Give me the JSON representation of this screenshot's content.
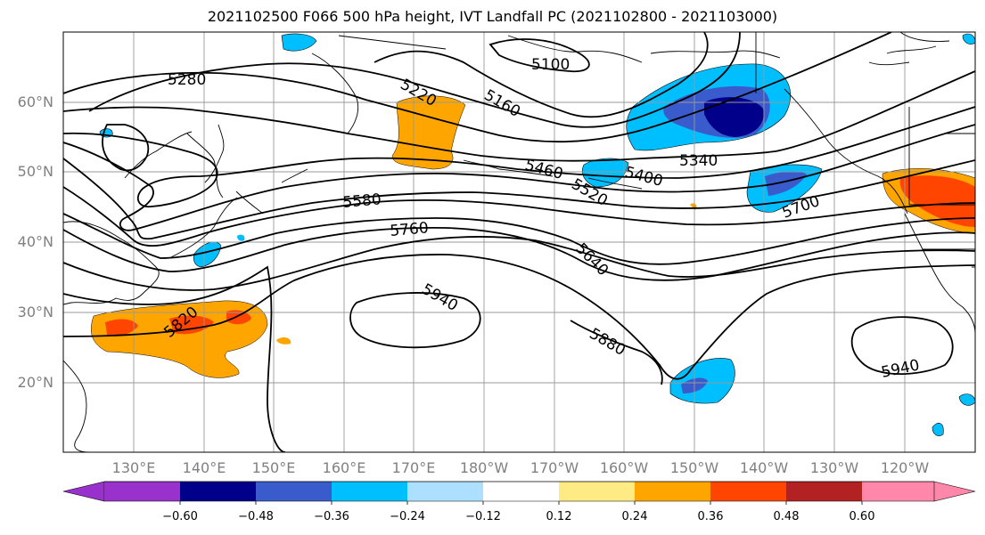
{
  "title": "2021102500 F066 500 hPa height, IVT Landfall PC (2021102800 - 2021103000)",
  "lat_labels": [
    "60°N",
    "50°N",
    "40°N",
    "30°N",
    "20°N"
  ],
  "lon_labels": [
    "130°E",
    "140°E",
    "150°E",
    "160°E",
    "170°E",
    "180°W",
    "170°W",
    "160°W",
    "150°W",
    "140°W",
    "130°W",
    "120°W"
  ],
  "contour_labels": [
    "5280",
    "5220",
    "5160",
    "5100",
    "5340",
    "5460",
    "5400",
    "5520",
    "5580",
    "5760",
    "5640",
    "5700",
    "5940",
    "5820",
    "5880",
    "5940"
  ],
  "colorbar": {
    "ticks": [
      "−0.60",
      "−0.48",
      "−0.36",
      "−0.24",
      "−0.12",
      "0.12",
      "0.24",
      "0.36",
      "0.48",
      "0.60"
    ],
    "colors": [
      "#9932CC",
      "#00008B",
      "#3A5BCB",
      "#00BFFF",
      "#ADDFFF",
      "#FFFFFF",
      "#FFEB84",
      "#FFA500",
      "#FF4500",
      "#B22222",
      "#FF88AA"
    ]
  }
}
